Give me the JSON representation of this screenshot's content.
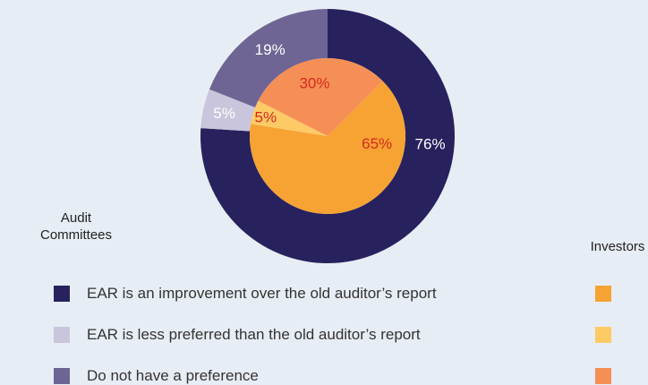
{
  "chart_data": {
    "type": "pie",
    "categories": [
      "EAR is an improvement over the old auditor’s report",
      "EAR is less preferred than the old auditor’s report",
      "Do not have a preference"
    ],
    "series": [
      {
        "name": "Audit Committees",
        "colors": [
          "#27225e",
          "#c9c5dc",
          "#6e6594"
        ],
        "values": [
          76,
          5,
          19
        ],
        "value_labels": [
          "76%",
          "5%",
          "19%"
        ]
      },
      {
        "name": "Investors",
        "colors": [
          "#f6a334",
          "#fdca66",
          "#f68f56"
        ],
        "values": [
          65,
          5,
          30
        ],
        "value_labels": [
          "65%",
          "5%",
          "30%"
        ]
      }
    ]
  }
}
